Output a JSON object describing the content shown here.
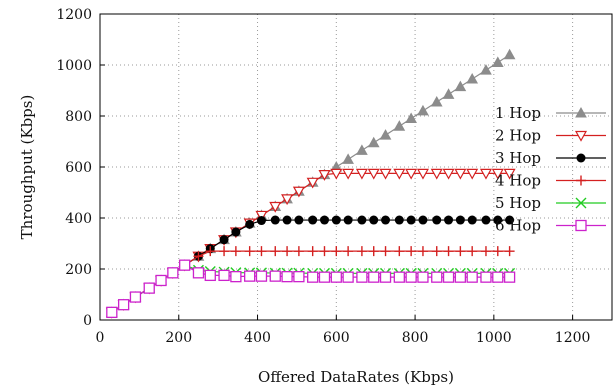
{
  "chart_data": {
    "type": "line",
    "xlabel": "Offered DataRates (Kbps)",
    "ylabel": "Throughput (Kbps)",
    "xlim": [
      0,
      1300
    ],
    "ylim": [
      0,
      1200
    ],
    "xticks": [
      0,
      200,
      400,
      600,
      800,
      1000,
      1200
    ],
    "yticks": [
      0,
      200,
      400,
      600,
      800,
      1000,
      1200
    ],
    "grid": true,
    "legend_position": "right",
    "x": [
      30,
      60,
      90,
      125,
      155,
      185,
      215,
      250,
      280,
      315,
      345,
      380,
      410,
      445,
      475,
      505,
      540,
      570,
      600,
      630,
      665,
      695,
      725,
      760,
      790,
      820,
      855,
      885,
      915,
      945,
      980,
      1010,
      1040
    ],
    "series": [
      {
        "name": "1 Hop",
        "color": "#8c8c8c",
        "marker": "triangle",
        "values": [
          30,
          60,
          90,
          125,
          155,
          185,
          215,
          250,
          280,
          315,
          345,
          380,
          410,
          445,
          475,
          505,
          540,
          570,
          600,
          630,
          665,
          695,
          725,
          760,
          790,
          820,
          855,
          885,
          915,
          945,
          980,
          1010,
          1040
        ]
      },
      {
        "name": "2 Hop",
        "color": "#d42020",
        "marker": "triangle-down",
        "values": [
          30,
          60,
          90,
          125,
          155,
          185,
          215,
          250,
          280,
          315,
          345,
          380,
          410,
          445,
          475,
          505,
          540,
          570,
          575,
          575,
          575,
          575,
          575,
          575,
          575,
          575,
          575,
          575,
          575,
          575,
          575,
          575,
          575
        ]
      },
      {
        "name": "3 Hop",
        "color": "#000000",
        "marker": "circle",
        "values": [
          30,
          60,
          90,
          125,
          155,
          185,
          215,
          250,
          280,
          315,
          345,
          375,
          390,
          392,
          392,
          392,
          392,
          392,
          392,
          392,
          392,
          392,
          392,
          392,
          392,
          392,
          392,
          392,
          392,
          392,
          392,
          392,
          392
        ]
      },
      {
        "name": "4 Hop",
        "color": "#d42020",
        "marker": "plus",
        "values": [
          30,
          60,
          90,
          125,
          155,
          185,
          215,
          250,
          270,
          270,
          270,
          270,
          270,
          270,
          270,
          270,
          270,
          270,
          270,
          270,
          270,
          270,
          270,
          270,
          270,
          270,
          270,
          270,
          270,
          270,
          270,
          270,
          270
        ]
      },
      {
        "name": "5 Hop",
        "color": "#22cc22",
        "marker": "x",
        "values": [
          30,
          60,
          90,
          125,
          155,
          185,
          215,
          195,
          190,
          188,
          186,
          185,
          185,
          184,
          184,
          184,
          183,
          183,
          183,
          183,
          183,
          183,
          183,
          183,
          183,
          183,
          183,
          183,
          183,
          183,
          183,
          183,
          183
        ]
      },
      {
        "name": "6 Hop",
        "color": "#cc22cc",
        "marker": "square",
        "values": [
          30,
          60,
          90,
          125,
          155,
          185,
          215,
          185,
          175,
          175,
          170,
          172,
          172,
          172,
          170,
          170,
          168,
          168,
          168,
          168,
          168,
          168,
          168,
          168,
          168,
          168,
          168,
          168,
          168,
          168,
          168,
          168,
          168
        ]
      }
    ]
  }
}
